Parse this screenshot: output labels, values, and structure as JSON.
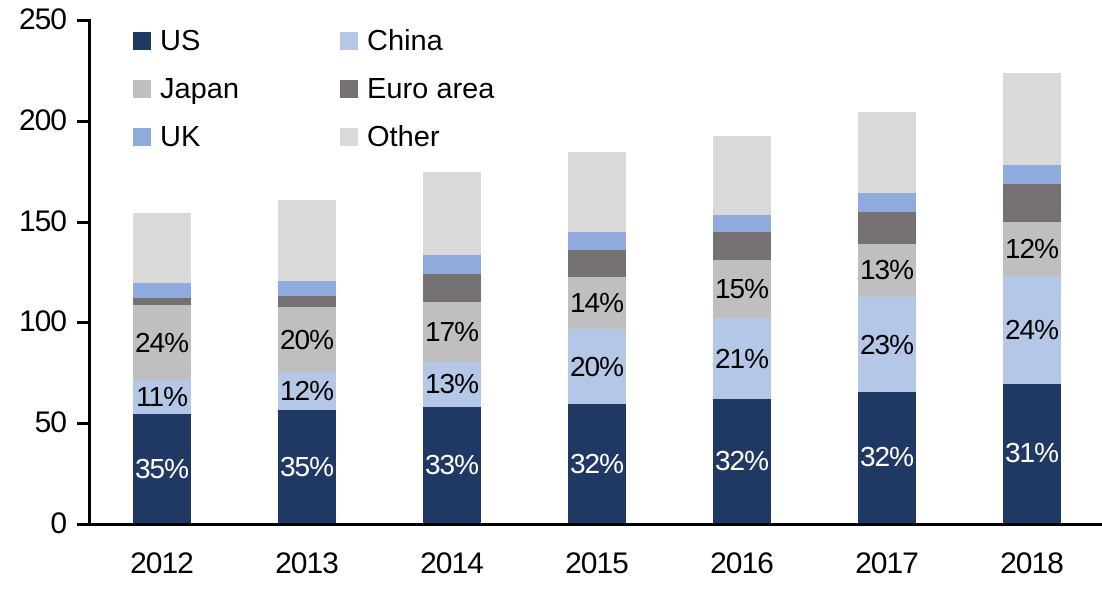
{
  "chart_data": {
    "type": "bar",
    "stacked": true,
    "title": "",
    "xlabel": "",
    "ylabel": "",
    "categories": [
      "2012",
      "2013",
      "2014",
      "2015",
      "2016",
      "2017",
      "2018"
    ],
    "totals": [
      154,
      160,
      174,
      184,
      192,
      204,
      223
    ],
    "series": [
      {
        "name": "US",
        "color": "#1F3864",
        "values": [
          54,
          56,
          57.5,
          59,
          61.5,
          65,
          69
        ],
        "labels": [
          "35%",
          "35%",
          "33%",
          "32%",
          "32%",
          "32%",
          "31%"
        ],
        "label_color": "#FFFFFF"
      },
      {
        "name": "China",
        "color": "#B4C7E7",
        "values": [
          17,
          19,
          22.5,
          37,
          40,
          47,
          53.5
        ],
        "labels": [
          "11%",
          "12%",
          "13%",
          "20%",
          "21%",
          "23%",
          "24%"
        ],
        "label_color": "#000000"
      },
      {
        "name": "Japan",
        "color": "#BFBFBF",
        "values": [
          37,
          32,
          29.5,
          26,
          29,
          26.5,
          27
        ],
        "labels": [
          "24%",
          "20%",
          "17%",
          "14%",
          "15%",
          "13%",
          "12%"
        ],
        "label_color": "#000000"
      },
      {
        "name": "Euro area",
        "color": "#767171",
        "values": [
          3.5,
          5.5,
          14,
          13.5,
          14,
          16,
          18.5
        ],
        "labels": null,
        "label_color": null
      },
      {
        "name": "UK",
        "color": "#8FAADC",
        "values": [
          7.5,
          7.5,
          9.5,
          9,
          8.5,
          9,
          9.5
        ],
        "labels": null,
        "label_color": null
      },
      {
        "name": "Other",
        "color": "#D9D9D9",
        "values": [
          35,
          40,
          41,
          39.5,
          39,
          40.5,
          45.5
        ],
        "labels": null,
        "label_color": null
      }
    ],
    "y_axis": {
      "min": 0,
      "max": 250,
      "tick_step": 50,
      "tick_labels": [
        "0",
        "50",
        "100",
        "150",
        "200",
        "250"
      ]
    },
    "grid": false,
    "legend": {
      "position": "top-left",
      "columns": 2,
      "items": [
        {
          "label": "US",
          "color": "#1F3864"
        },
        {
          "label": "China",
          "color": "#B4C7E7"
        },
        {
          "label": "Japan",
          "color": "#BFBFBF"
        },
        {
          "label": "Euro area",
          "color": "#767171"
        },
        {
          "label": "UK",
          "color": "#8FAADC"
        },
        {
          "label": "Other",
          "color": "#D9D9D9"
        }
      ]
    },
    "axis_color": "#000000",
    "background_color": "#FFFFFF"
  }
}
